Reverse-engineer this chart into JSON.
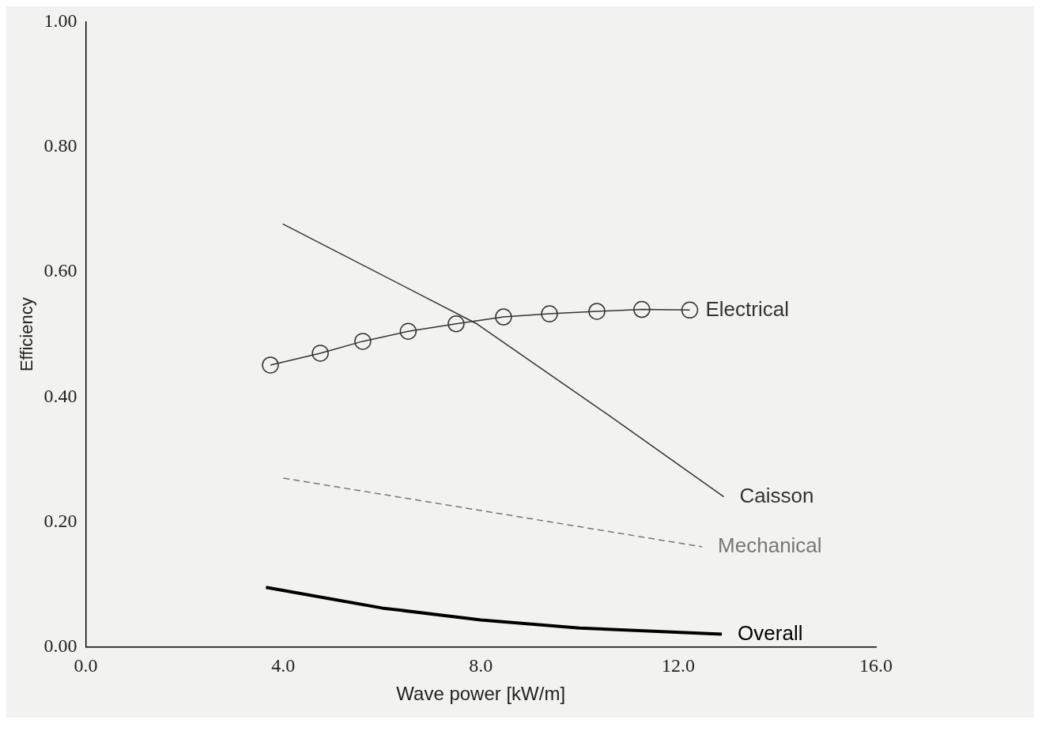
{
  "chart_data": {
    "type": "line",
    "xlabel": "Wave power [kW/m]",
    "ylabel": "Efficiency",
    "xlim": [
      0,
      16
    ],
    "ylim": [
      0,
      1
    ],
    "xticks": [
      {
        "value": 0,
        "label": "0.0"
      },
      {
        "value": 4,
        "label": "4.0"
      },
      {
        "value": 8,
        "label": "8.0"
      },
      {
        "value": 12,
        "label": "12.0"
      },
      {
        "value": 16,
        "label": "16.0"
      }
    ],
    "yticks": [
      {
        "value": 0,
        "label": "0.00"
      },
      {
        "value": 0.2,
        "label": "0.20"
      },
      {
        "value": 0.4,
        "label": "0.40"
      },
      {
        "value": 0.6,
        "label": "0.60"
      },
      {
        "value": 0.8,
        "label": "0.80"
      },
      {
        "value": 1,
        "label": "1.00"
      }
    ],
    "grid": false,
    "legend": false,
    "series": [
      {
        "name": "Electrical",
        "color": "#333333",
        "marker": "circle",
        "line_style": "solid",
        "x": [
          3.74,
          4.75,
          5.61,
          6.53,
          7.5,
          8.46,
          9.39,
          10.35,
          11.26,
          12.23
        ],
        "values": [
          0.451,
          0.47,
          0.489,
          0.505,
          0.517,
          0.528,
          0.533,
          0.537,
          0.54,
          0.539
        ]
      },
      {
        "name": "Caisson",
        "color": "#333333",
        "marker": "none",
        "line_style": "solid",
        "x": [
          3.99,
          7.92,
          10.6,
          12.92
        ],
        "values": [
          0.677,
          0.517,
          0.37,
          0.24
        ]
      },
      {
        "name": "Mechanical",
        "color": "#777777",
        "marker": "none",
        "line_style": "dashed",
        "x": [
          4.0,
          12.48
        ],
        "values": [
          0.27,
          0.16
        ]
      },
      {
        "name": "Overall",
        "color": "#000000",
        "marker": "none",
        "line_style": "solid",
        "x": [
          3.65,
          6,
          8,
          10,
          12.88
        ],
        "values": [
          0.095,
          0.062,
          0.043,
          0.03,
          0.02
        ]
      }
    ]
  }
}
